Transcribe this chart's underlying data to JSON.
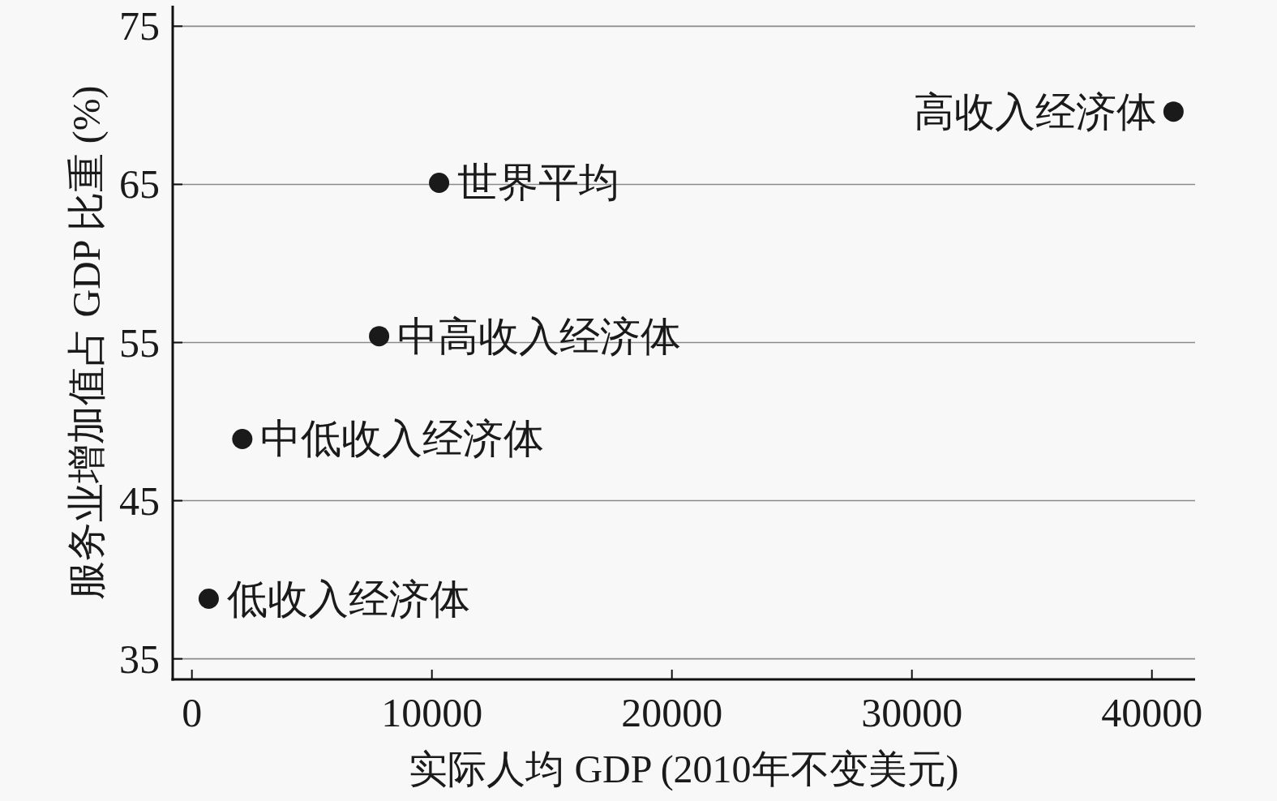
{
  "chart_data": {
    "type": "scatter",
    "xlabel": "实际人均 GDP (2010年不变美元)",
    "ylabel": "服务业增加值占 GDP 比重 (%)",
    "x": [
      700,
      2100,
      7800,
      10300,
      40900
    ],
    "values": [
      38.8,
      48.9,
      55.4,
      65.1,
      69.6
    ],
    "color": "#1a1a1a",
    "marker": "circle",
    "xlim": [
      -800,
      41800
    ],
    "ylim": [
      33.7,
      76.3
    ],
    "xticks": [
      0,
      10000,
      20000,
      30000,
      40000
    ],
    "yticks": [
      35,
      45,
      55,
      65,
      75
    ],
    "grid": "y",
    "annotations": [
      {
        "text": "低收入经济体",
        "x": 700,
        "y": 38.8
      },
      {
        "text": "中低收入经济体",
        "x": 2100,
        "y": 48.9
      },
      {
        "text": "中高收入经济体",
        "x": 7800,
        "y": 55.4
      },
      {
        "text": "世界平均",
        "x": 10300,
        "y": 65.1
      },
      {
        "text": "高收入经济体",
        "x": 40900,
        "y": 69.6
      }
    ]
  }
}
